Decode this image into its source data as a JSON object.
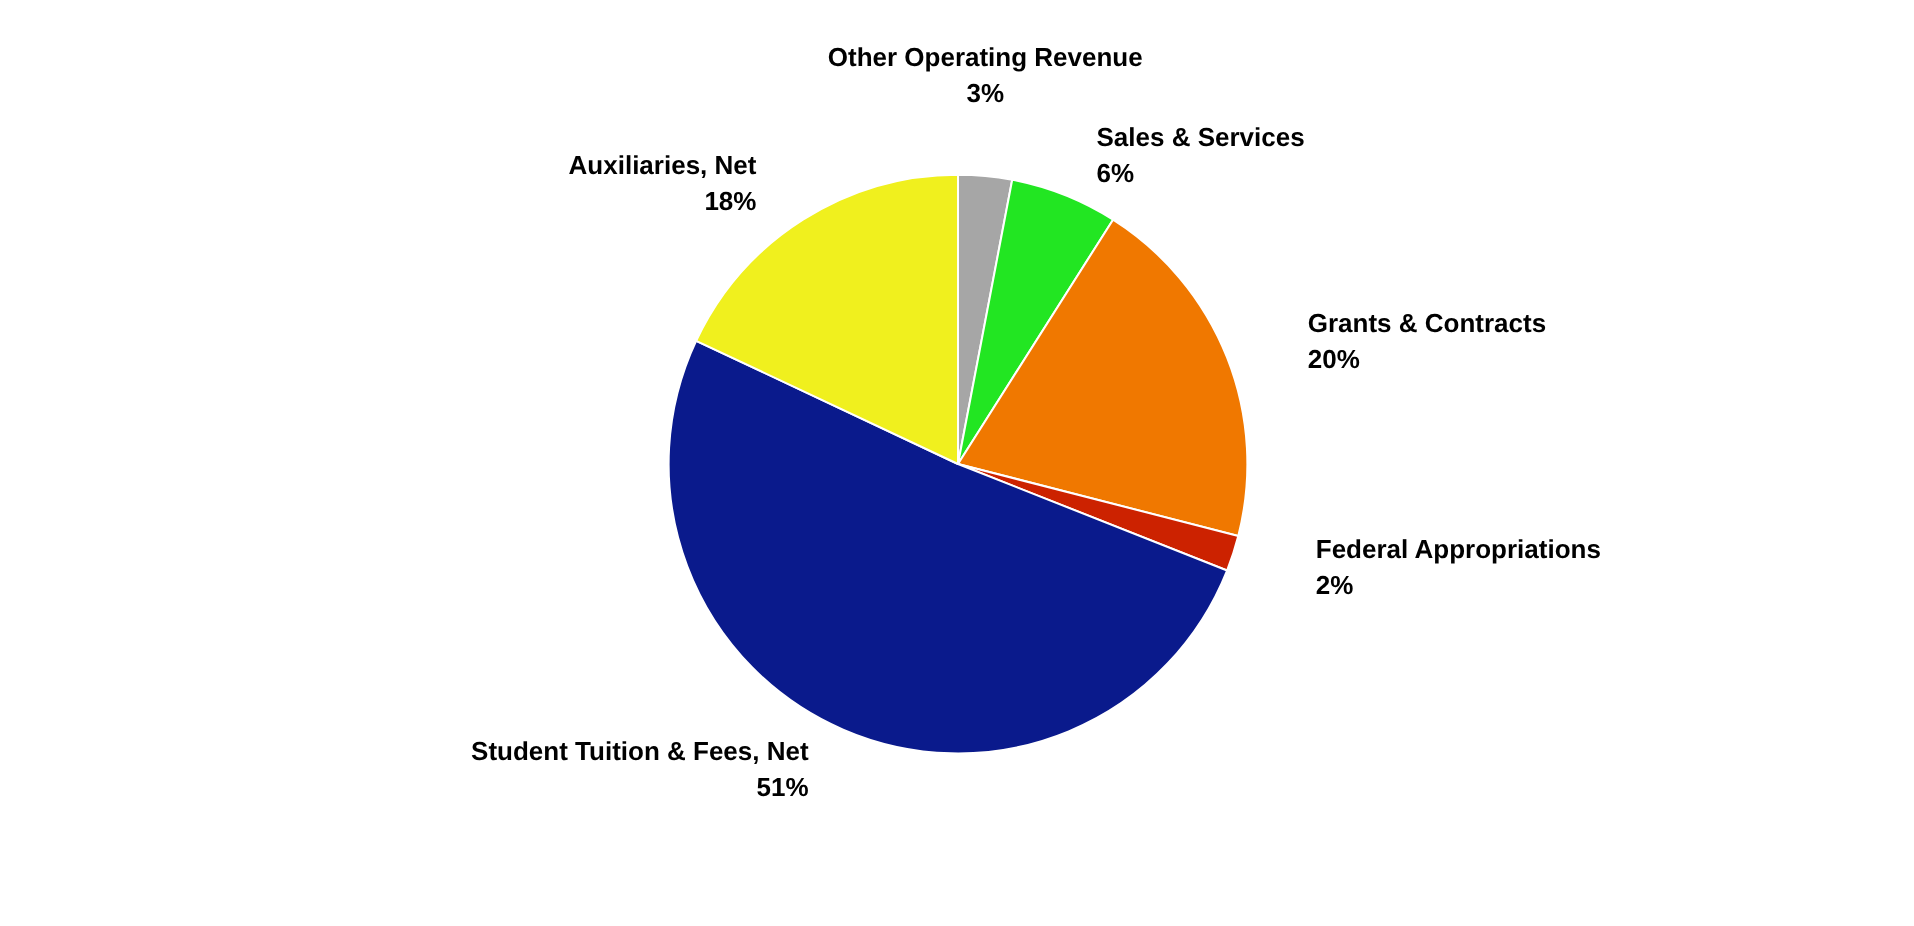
{
  "chart_data": {
    "type": "pie",
    "categories": [
      "Other Operating Revenue",
      "Sales & Services",
      "Grants & Contracts",
      "Federal Appropriations",
      "Student Tuition & Fees, Net",
      "Auxiliaries, Net"
    ],
    "values": [
      3,
      6,
      20,
      2,
      51,
      18
    ],
    "value_labels": [
      "3%",
      "6%",
      "20%",
      "2%",
      "51%",
      "18%"
    ],
    "colors": [
      "#a6a6a6",
      "#22e622",
      "#f07800",
      "#cc2200",
      "#0a1a8c",
      "#f0f01e"
    ]
  }
}
